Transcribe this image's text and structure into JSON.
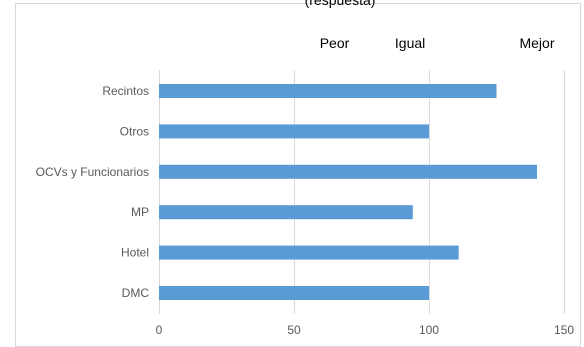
{
  "chart_data": {
    "type": "bar",
    "orientation": "horizontal",
    "title_partial": "(respuesta)",
    "categories": [
      "Recintos",
      "Otros",
      "OCVs y Funcionarios",
      "MP",
      "Hotel",
      "DMC"
    ],
    "values": [
      125,
      100,
      140,
      94,
      111,
      100
    ],
    "xlim": [
      0,
      150
    ],
    "x_ticks": [
      0,
      50,
      100,
      150
    ],
    "grid": "vertical-major",
    "annotations": [
      {
        "text": "Peor",
        "x": 65
      },
      {
        "text": "Igual",
        "x": 93
      },
      {
        "text": "Mejor",
        "x": 140
      }
    ],
    "colors": {
      "bar": "#5B9BD5",
      "grid": "#D9D9D9",
      "border": "#D9D9D9",
      "tick_text": "#595959"
    }
  }
}
